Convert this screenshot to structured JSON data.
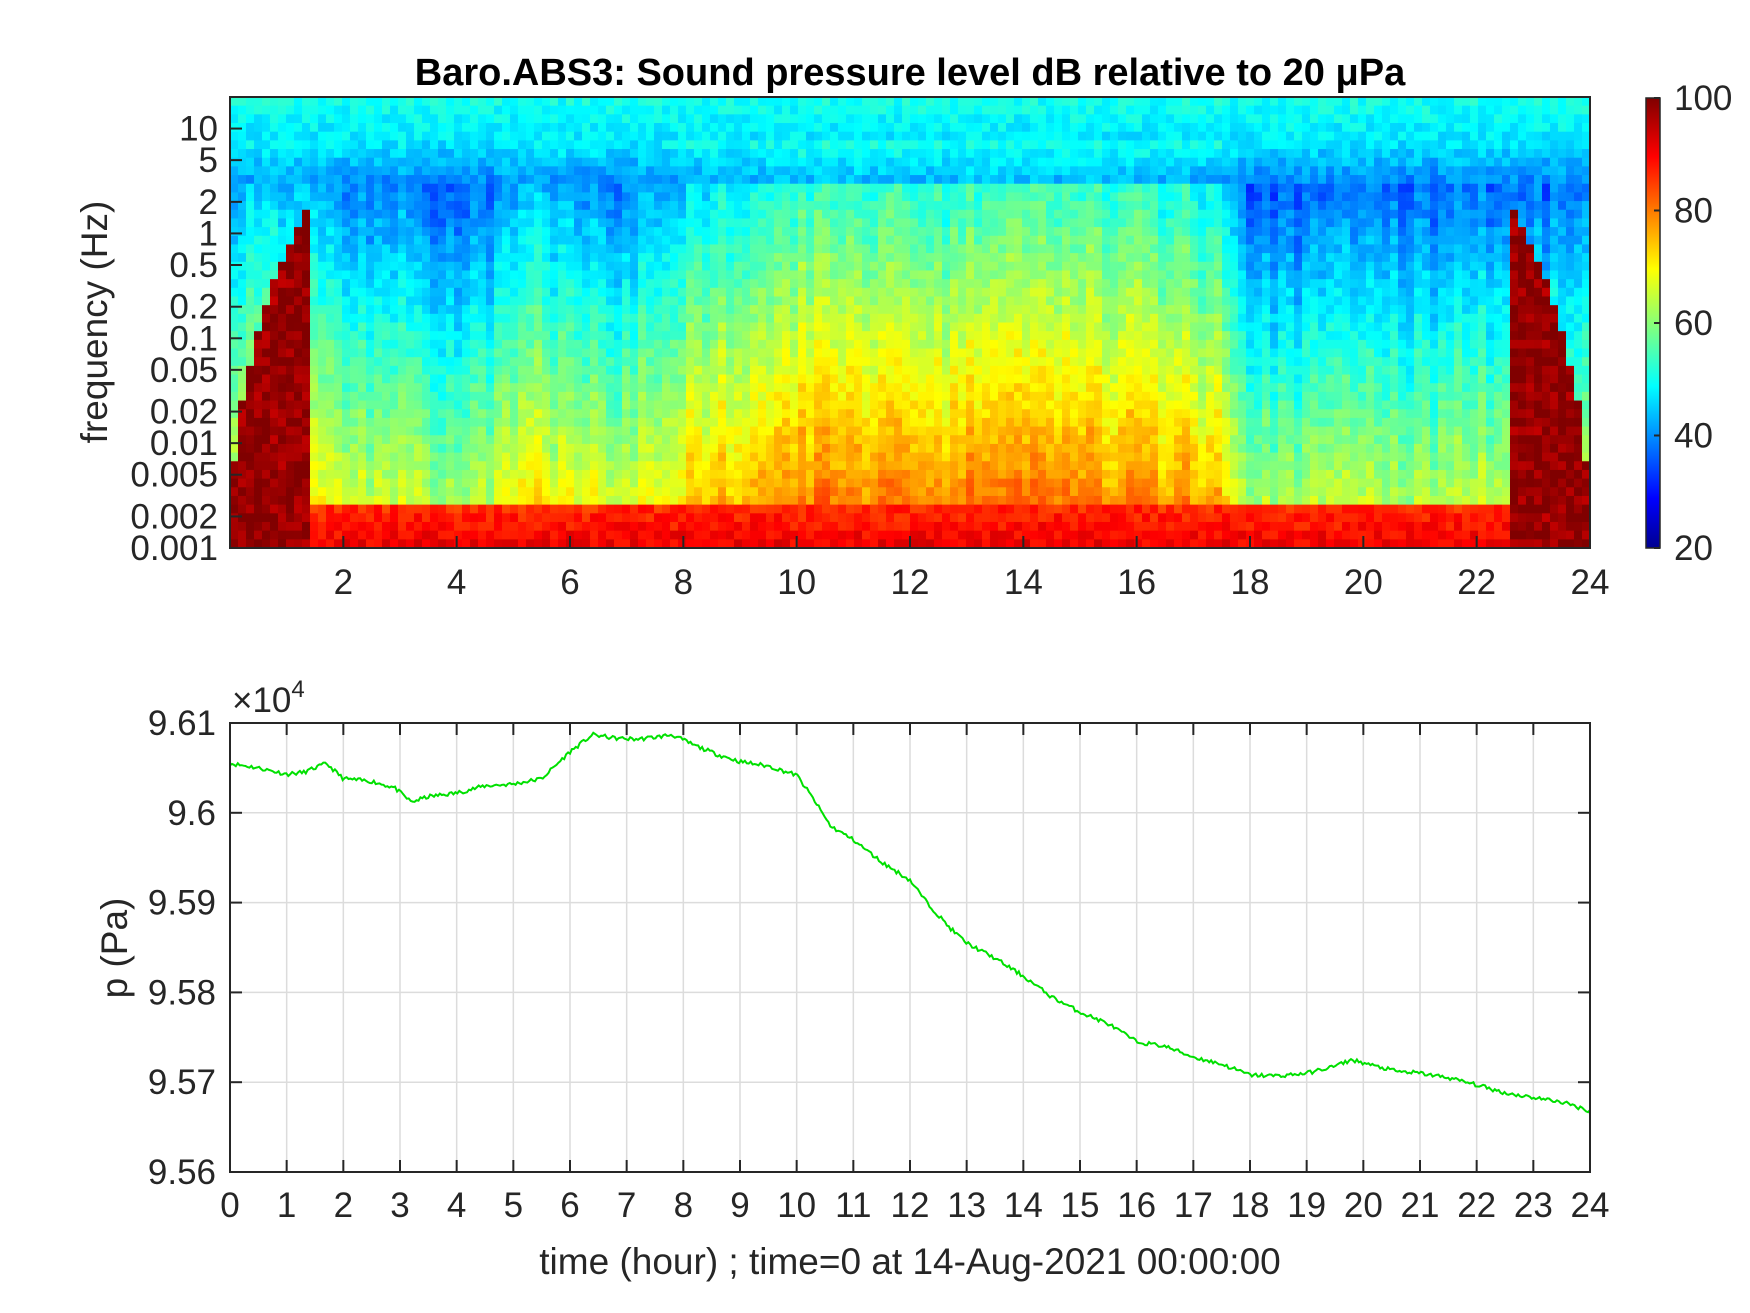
{
  "chart_data": [
    {
      "type": "heatmap",
      "title_prefix": "Baro.ABS3: Sound pressure level dB relative to 20 ",
      "title_unit": "μPa",
      "xlabel": "",
      "ylabel": "frequency (Hz)",
      "xlim": [
        0,
        24
      ],
      "xticks": [
        2,
        4,
        6,
        8,
        10,
        12,
        14,
        16,
        18,
        20,
        22,
        24
      ],
      "y_scale": "log",
      "ylim": [
        0.001,
        20
      ],
      "yticks": [
        {
          "value": 10,
          "label": "10"
        },
        {
          "value": 5,
          "label": "5"
        },
        {
          "value": 2,
          "label": "2"
        },
        {
          "value": 1,
          "label": "1"
        },
        {
          "value": 0.5,
          "label": "0.5"
        },
        {
          "value": 0.2,
          "label": "0.2"
        },
        {
          "value": 0.1,
          "label": "0.1"
        },
        {
          "value": 0.05,
          "label": "0.05"
        },
        {
          "value": 0.02,
          "label": "0.02"
        },
        {
          "value": 0.01,
          "label": "0.01"
        },
        {
          "value": 0.005,
          "label": "0.005"
        },
        {
          "value": 0.002,
          "label": "0.002"
        },
        {
          "value": 0.001,
          "label": "0.001"
        }
      ],
      "colormap": "jet",
      "colorbar": {
        "range": [
          20,
          100
        ],
        "ticks": [
          20,
          40,
          60,
          80,
          100
        ]
      },
      "grid": false,
      "activity_profile": [
        [
          0,
          0.55
        ],
        [
          1,
          0.55
        ],
        [
          1.7,
          0.5
        ],
        [
          2.2,
          0.3
        ],
        [
          3,
          0.45
        ],
        [
          3.5,
          0.2
        ],
        [
          4.5,
          0.25
        ],
        [
          5.2,
          0.55
        ],
        [
          6,
          0.5
        ],
        [
          6.8,
          0.3
        ],
        [
          7.5,
          0.55
        ],
        [
          8.5,
          0.7
        ],
        [
          9.5,
          0.85
        ],
        [
          10.5,
          1.0
        ],
        [
          11.5,
          0.95
        ],
        [
          12.5,
          0.85
        ],
        [
          13.5,
          0.95
        ],
        [
          14.5,
          1.0
        ],
        [
          15.5,
          0.9
        ],
        [
          16.5,
          0.85
        ],
        [
          17.5,
          0.7
        ],
        [
          18,
          0.25
        ],
        [
          19.5,
          0.25
        ],
        [
          21,
          0.3
        ],
        [
          22.5,
          0.3
        ],
        [
          24,
          0.3
        ]
      ]
    },
    {
      "type": "line",
      "title": "",
      "xlabel": "time (hour) ; time=0 at 14-Aug-2021 00:00:00",
      "ylabel": "p (Pa)",
      "y_exponent_prefix": "×10",
      "y_exponent_power": "4",
      "xlim": [
        0,
        24
      ],
      "ylim": [
        9.56,
        9.61
      ],
      "xticks": [
        0,
        1,
        2,
        3,
        4,
        5,
        6,
        7,
        8,
        9,
        10,
        11,
        12,
        13,
        14,
        15,
        16,
        17,
        18,
        19,
        20,
        21,
        22,
        23,
        24
      ],
      "yticks": [
        {
          "value": 9.56,
          "label": "9.56"
        },
        {
          "value": 9.57,
          "label": "9.57"
        },
        {
          "value": 9.58,
          "label": "9.58"
        },
        {
          "value": 9.59,
          "label": "9.59"
        },
        {
          "value": 9.6,
          "label": "9.6"
        },
        {
          "value": 9.61,
          "label": "9.61"
        }
      ],
      "grid": true,
      "series": [
        {
          "color": "#00e000",
          "x": [
            0,
            0.5,
            1,
            1.3,
            1.7,
            2,
            2.5,
            2.9,
            3.2,
            3.5,
            4,
            4.5,
            5,
            5.5,
            6,
            6.4,
            6.8,
            7.2,
            7.6,
            7.8,
            8.2,
            8.6,
            9,
            9.5,
            10,
            10.3,
            10.6,
            11,
            11.5,
            12,
            12.3,
            12.7,
            13,
            13.5,
            14,
            14.5,
            15,
            15.5,
            16,
            16.5,
            17,
            17.5,
            18,
            18.5,
            19,
            19.5,
            19.8,
            20.2,
            20.6,
            21,
            21.5,
            22,
            22.5,
            23,
            23.5,
            24
          ],
          "y": [
            9.6055,
            9.605,
            9.6043,
            9.6045,
            9.6055,
            9.6038,
            9.6035,
            9.6028,
            9.6012,
            9.6018,
            9.6022,
            9.603,
            9.6032,
            9.6038,
            9.6068,
            9.6087,
            9.6083,
            9.6082,
            9.6085,
            9.6087,
            9.6075,
            9.6065,
            9.6057,
            9.6052,
            9.6042,
            9.6015,
            9.5985,
            9.597,
            9.5945,
            9.5925,
            9.59,
            9.5872,
            9.5855,
            9.5838,
            9.5818,
            9.5795,
            9.5778,
            9.5765,
            9.5745,
            9.574,
            9.5728,
            9.572,
            9.5708,
            9.5707,
            9.571,
            9.5718,
            9.5725,
            9.5718,
            9.5712,
            9.571,
            9.5705,
            9.5697,
            9.5688,
            9.5683,
            9.5678,
            9.5668
          ]
        }
      ]
    }
  ]
}
